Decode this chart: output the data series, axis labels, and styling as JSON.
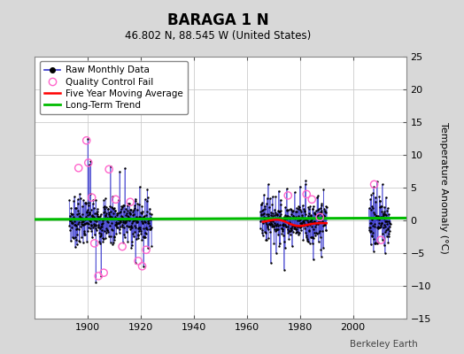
{
  "title": "BARAGA 1 N",
  "subtitle": "46.802 N, 88.545 W (United States)",
  "ylabel": "Temperature Anomaly (°C)",
  "watermark": "Berkeley Earth",
  "xlim": [
    1880,
    2020
  ],
  "ylim": [
    -15,
    25
  ],
  "yticks": [
    -15,
    -10,
    -5,
    0,
    5,
    10,
    15,
    20,
    25
  ],
  "xticks": [
    1900,
    1920,
    1940,
    1960,
    1980,
    2000
  ],
  "figure_bg": "#d8d8d8",
  "plot_bg": "#ffffff",
  "raw_color": "#3333cc",
  "dot_color": "#000000",
  "qc_color": "#ff66cc",
  "moving_avg_color": "#ff0000",
  "trend_color": "#00bb00",
  "seg1_start": 1893,
  "seg1_end": 1924,
  "seg2_start": 1965,
  "seg2_end": 1990,
  "seg3_start": 2006,
  "seg3_end": 2014
}
